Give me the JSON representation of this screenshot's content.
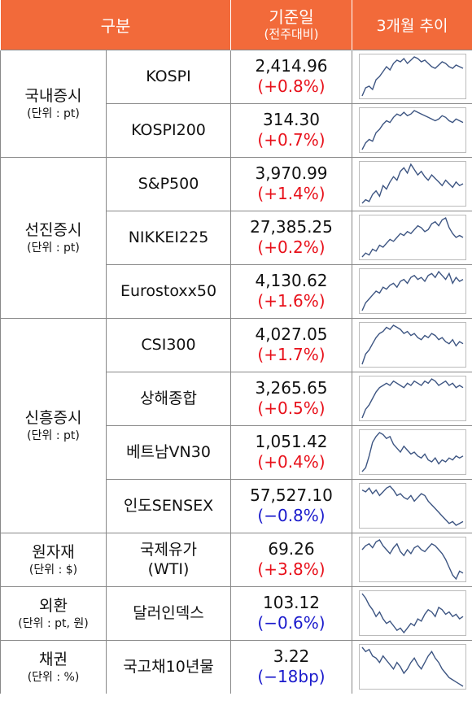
{
  "header": {
    "col_category": "구분",
    "col_base": "기준일",
    "col_base_sub": "(전주대비)",
    "col_trend": "3개월 추이"
  },
  "colors": {
    "header_bg": "#f26a3a",
    "up": "#e8101a",
    "down": "#1a1acc",
    "line": "#3d5582"
  },
  "groups": [
    {
      "name": "국내증시",
      "unit": "(단위 : pt)",
      "items": [
        {
          "name": "KOSPI",
          "value": "2,414.96",
          "change": "(+0.8%)",
          "dir": "up",
          "trend": [
            40,
            45,
            46,
            44,
            50,
            52,
            55,
            58,
            56,
            60,
            62,
            61,
            63,
            60,
            62,
            64,
            63,
            61,
            62,
            60,
            58,
            57,
            59,
            61,
            60,
            58,
            57,
            59,
            58,
            57
          ]
        },
        {
          "name": "KOSPI200",
          "value": "314.30",
          "change": "(+0.7%)",
          "dir": "up",
          "trend": [
            40,
            44,
            46,
            45,
            50,
            52,
            55,
            57,
            56,
            59,
            61,
            60,
            62,
            60,
            61,
            63,
            62,
            61,
            60,
            59,
            58,
            57,
            58,
            60,
            59,
            57,
            56,
            58,
            57,
            56
          ]
        }
      ]
    },
    {
      "name": "선진증시",
      "unit": "(단위 : pt)",
      "items": [
        {
          "name": "S&P500",
          "value": "3,970.99",
          "change": "(+1.4%)",
          "dir": "up",
          "trend": [
            40,
            42,
            41,
            45,
            47,
            44,
            50,
            48,
            52,
            55,
            53,
            58,
            60,
            57,
            62,
            59,
            56,
            58,
            55,
            53,
            56,
            54,
            52,
            50,
            53,
            51,
            49,
            52,
            50,
            51
          ]
        },
        {
          "name": "NIKKEI225",
          "value": "27,385.25",
          "change": "(+0.2%)",
          "dir": "up",
          "trend": [
            40,
            42,
            41,
            44,
            43,
            46,
            45,
            47,
            49,
            48,
            50,
            52,
            51,
            53,
            52,
            54,
            56,
            55,
            53,
            54,
            57,
            58,
            56,
            59,
            60,
            55,
            52,
            50,
            51,
            50
          ]
        },
        {
          "name": "Eurostoxx50",
          "value": "4,130.62",
          "change": "(+1.6%)",
          "dir": "up",
          "trend": [
            40,
            44,
            46,
            48,
            50,
            49,
            52,
            51,
            53,
            54,
            52,
            55,
            56,
            54,
            57,
            58,
            56,
            57,
            55,
            58,
            59,
            57,
            60,
            58,
            56,
            59,
            54,
            57,
            55,
            56
          ]
        }
      ]
    },
    {
      "name": "신흥증시",
      "unit": "(단위 : pt)",
      "items": [
        {
          "name": "CSI300",
          "value": "4,027.05",
          "change": "(+1.7%)",
          "dir": "up",
          "trend": [
            40,
            45,
            47,
            50,
            53,
            55,
            56,
            58,
            57,
            59,
            58,
            57,
            55,
            56,
            54,
            55,
            53,
            52,
            54,
            53,
            55,
            54,
            52,
            53,
            51,
            50,
            52,
            49,
            51,
            50
          ]
        },
        {
          "name": "상해종합",
          "value": "3,265.65",
          "change": "(+0.5%)",
          "dir": "up",
          "trend": [
            40,
            44,
            46,
            49,
            52,
            54,
            55,
            56,
            55,
            57,
            56,
            55,
            54,
            56,
            55,
            57,
            56,
            55,
            57,
            56,
            58,
            57,
            55,
            56,
            57,
            55,
            56,
            54,
            55,
            54
          ]
        },
        {
          "name": "베트남VN30",
          "value": "1,051.42",
          "change": "(+0.4%)",
          "dir": "up",
          "trend": [
            40,
            42,
            48,
            55,
            58,
            60,
            59,
            57,
            58,
            54,
            52,
            50,
            53,
            51,
            49,
            50,
            48,
            47,
            49,
            46,
            45,
            47,
            44,
            46,
            45,
            47,
            46,
            48,
            47,
            48
          ]
        },
        {
          "name": "인도SENSEX",
          "value": "57,527.10",
          "change": "(−0.8%)",
          "dir": "down",
          "trend": [
            58,
            57,
            59,
            56,
            58,
            55,
            57,
            59,
            60,
            58,
            55,
            56,
            54,
            53,
            55,
            52,
            54,
            56,
            55,
            52,
            50,
            48,
            46,
            44,
            42,
            40,
            41,
            39,
            40,
            41
          ]
        }
      ]
    },
    {
      "name": "원자재",
      "unit": "(단위 : $)",
      "items": [
        {
          "name": "국제유가",
          "name2": "(WTI)",
          "value": "69.26",
          "change": "(+3.8%)",
          "dir": "up",
          "trend": [
            55,
            57,
            58,
            56,
            59,
            60,
            57,
            55,
            53,
            56,
            58,
            54,
            52,
            55,
            53,
            56,
            57,
            55,
            54,
            56,
            58,
            57,
            55,
            53,
            50,
            46,
            42,
            40,
            44,
            43
          ]
        }
      ]
    },
    {
      "name": "외환",
      "unit": "(단위 : pt, 원)",
      "items": [
        {
          "name": "달러인덱스",
          "value": "103.12",
          "change": "(−0.6%)",
          "dir": "down",
          "trend": [
            60,
            58,
            55,
            53,
            50,
            52,
            49,
            47,
            48,
            46,
            44,
            45,
            43,
            45,
            47,
            46,
            49,
            48,
            51,
            53,
            52,
            50,
            54,
            53,
            51,
            52,
            50,
            51,
            49,
            50
          ]
        }
      ]
    },
    {
      "name": "채권",
      "unit": "(단위 : %)",
      "items": [
        {
          "name": "국고채10년물",
          "value": "3.22",
          "change": "(−18bp)",
          "dir": "down",
          "trend": [
            62,
            60,
            61,
            58,
            57,
            55,
            58,
            56,
            54,
            52,
            55,
            53,
            50,
            52,
            55,
            57,
            54,
            52,
            55,
            58,
            60,
            57,
            55,
            52,
            50,
            48,
            47,
            46,
            45,
            44
          ]
        }
      ]
    }
  ]
}
